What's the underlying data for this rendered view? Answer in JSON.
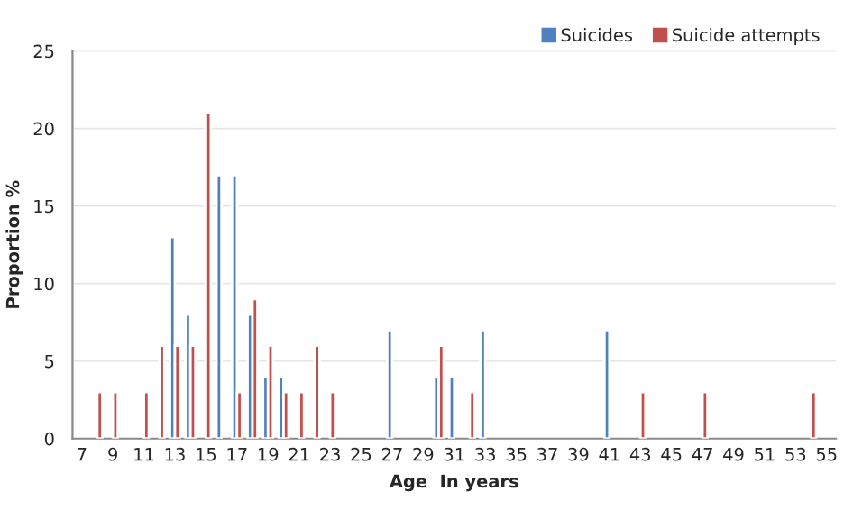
{
  "chart_data": {
    "type": "bar",
    "xlabel": "Age  In years",
    "ylabel": "Proportion %",
    "categories": [
      "7",
      null,
      "9",
      null,
      "11",
      null,
      "13",
      null,
      "15",
      null,
      "17",
      null,
      "19",
      null,
      "21",
      null,
      "23",
      null,
      "25",
      null,
      "27",
      null,
      "29",
      null,
      "31",
      null,
      "33",
      null,
      "35",
      null,
      "37",
      null,
      "39",
      null,
      "41",
      null,
      "43",
      null,
      "45",
      null,
      "47",
      null,
      "49",
      null,
      "51",
      null,
      "53",
      null,
      "55"
    ],
    "series": [
      {
        "name": "Suicides",
        "color": "#4f81bd",
        "values": [
          null,
          null,
          null,
          null,
          null,
          null,
          13,
          8,
          null,
          17,
          17,
          8,
          4,
          4,
          null,
          null,
          null,
          null,
          null,
          null,
          7,
          null,
          null,
          4,
          4,
          null,
          7,
          null,
          null,
          null,
          null,
          null,
          null,
          null,
          7,
          null,
          null,
          null,
          null,
          null,
          null,
          null,
          null,
          null,
          null,
          null,
          null,
          null,
          null
        ]
      },
      {
        "name": "Suicide attempts",
        "color": "#c0504d",
        "values": [
          null,
          3,
          3,
          null,
          3,
          6,
          6,
          6,
          21,
          null,
          3,
          9,
          6,
          3,
          3,
          6,
          3,
          null,
          null,
          null,
          null,
          null,
          null,
          6,
          null,
          3,
          null,
          null,
          null,
          null,
          null,
          null,
          null,
          null,
          null,
          null,
          3,
          null,
          null,
          null,
          3,
          null,
          null,
          null,
          null,
          null,
          null,
          3,
          null
        ]
      }
    ],
    "ylim": [
      0,
      25
    ],
    "yticks": [
      0,
      5,
      10,
      15,
      20,
      25
    ],
    "grid": "y",
    "legend": "top right"
  }
}
